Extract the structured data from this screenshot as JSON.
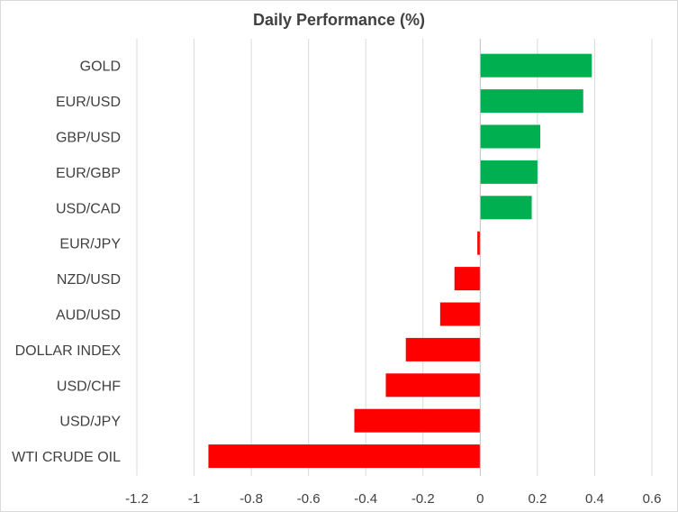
{
  "chart_data": {
    "type": "bar",
    "orientation": "horizontal",
    "title": "Daily Performance (%)",
    "categories": [
      "GOLD",
      "EUR/USD",
      "GBP/USD",
      "EUR/GBP",
      "USD/CAD",
      "EUR/JPY",
      "NZD/USD",
      "AUD/USD",
      "DOLLAR INDEX",
      "USD/CHF",
      "USD/JPY",
      "WTI CRUDE OIL"
    ],
    "values": [
      0.39,
      0.36,
      0.21,
      0.2,
      0.18,
      -0.01,
      -0.09,
      -0.14,
      -0.26,
      -0.33,
      -0.44,
      -0.95
    ],
    "xlim": [
      -1.2,
      0.6
    ],
    "xticks": [
      "-1.2",
      "-1",
      "-0.8",
      "-0.6",
      "-0.4",
      "-0.2",
      "0",
      "0.2",
      "0.4",
      "0.6"
    ],
    "grid": true,
    "legend": "none",
    "colors": {
      "positive": "#00b050",
      "negative": "#ff0000",
      "grid": "#d9d9d9",
      "text": "#404040"
    }
  }
}
